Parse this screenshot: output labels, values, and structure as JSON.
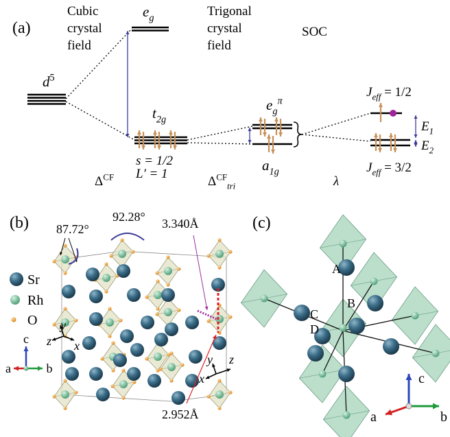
{
  "panel_a": {
    "label": "(a)",
    "cubic_title": [
      "Cubic",
      "crystal",
      "field"
    ],
    "eg": {
      "main": "e",
      "sub": "g"
    },
    "d5": {
      "main": "d",
      "sup": "5"
    },
    "t2g": {
      "main": "t",
      "sub": "2g"
    },
    "spin": "s = 1/2",
    "orbital": "L′ = 1",
    "delta_cf": {
      "main": "Δ",
      "sup": "CF"
    },
    "trigonal_title": [
      "Trigonal",
      "crystal",
      "field"
    ],
    "eg_pi": {
      "main": "e",
      "sub": "g",
      "sup": "π"
    },
    "a1g": {
      "main": "a",
      "sub": "1g"
    },
    "delta_tri": {
      "main": "Δ",
      "sub": "tri",
      "sup": "CF"
    },
    "soc_title": "SOC",
    "lambda": "λ",
    "jeff_half": {
      "main": "J",
      "sub": "eff",
      "rest": " = 1/2"
    },
    "jeff_three_half": {
      "main": "J",
      "sub": "eff",
      "rest": " = 3/2"
    },
    "e1": {
      "main": "E",
      "sub": "1"
    },
    "e2": {
      "main": "E",
      "sub": "2"
    }
  },
  "panel_b": {
    "label": "(b)",
    "angle_1": "87.72°",
    "angle_2": "92.28°",
    "distance_1": "3.340Å",
    "distance_2": "2.952Å",
    "legend": [
      "Sr",
      "Rh",
      "O"
    ],
    "axes": [
      "c",
      "a",
      "b"
    ],
    "local_axes_left": [
      "z",
      "y",
      "x"
    ],
    "local_axes_right": [
      "y",
      "z",
      "x"
    ]
  },
  "panel_c": {
    "label": "(c)",
    "sites": [
      "A",
      "B",
      "C",
      "D"
    ],
    "axes": [
      "c",
      "a",
      "b"
    ]
  }
}
